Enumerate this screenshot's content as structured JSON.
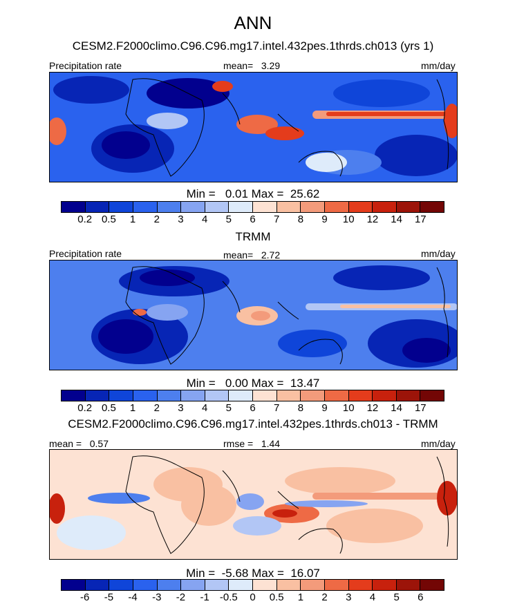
{
  "title": "ANN",
  "palettes": {
    "precip": [
      "#02008e",
      "#0725b5",
      "#0f45d9",
      "#2a62ee",
      "#4d7fee",
      "#86a4f1",
      "#b2c6f5",
      "#deebfa",
      "#fde2d3",
      "#f9c0a2",
      "#f39b7b",
      "#ee6a45",
      "#e43c1c",
      "#c8210d",
      "#9c1409",
      "#730605"
    ],
    "diff": [
      "#02008e",
      "#0725b5",
      "#0f45d9",
      "#2a62ee",
      "#4d7fee",
      "#86a4f1",
      "#b2c6f5",
      "#deebfa",
      "#fde2d3",
      "#f9c0a2",
      "#f39b7b",
      "#ee6a45",
      "#e43c1c",
      "#c8210d",
      "#9c1409",
      "#730605"
    ]
  },
  "panels": [
    {
      "subtitle": "CESM2.F2000climo.C96.C96.mg17.intel.432pes.1thrds.ch013 (yrs 1)",
      "left_label": "Precipitation rate",
      "center_label": "mean=   3.29",
      "right_label": "mm/day",
      "minmax": "Min =   0.01 Max =  25.62",
      "ticks": [
        "0.2",
        "0.5",
        "1",
        "2",
        "3",
        "4",
        "5",
        "6",
        "7",
        "8",
        "9",
        "10",
        "12",
        "14",
        "17"
      ]
    },
    {
      "subtitle": "TRMM",
      "left_label": "Precipitation rate",
      "center_label": "mean=   2.72",
      "right_label": "mm/day",
      "minmax": "Min =   0.00 Max =  13.47",
      "ticks": [
        "0.2",
        "0.5",
        "1",
        "2",
        "3",
        "4",
        "5",
        "6",
        "7",
        "8",
        "9",
        "10",
        "12",
        "14",
        "17"
      ]
    },
    {
      "subtitle": "CESM2.F2000climo.C96.C96.mg17.intel.432pes.1thrds.ch013 - TRMM",
      "left_label": "mean =   0.57",
      "center_label": "rmse =   1.44",
      "right_label": "mm/day",
      "minmax": "Min =  -5.68 Max =  16.07",
      "ticks": [
        "-6",
        "-5",
        "-4",
        "-3",
        "-2",
        "-1",
        "-0.5",
        "0",
        "0.5",
        "1",
        "2",
        "3",
        "4",
        "5",
        "6"
      ]
    }
  ]
}
